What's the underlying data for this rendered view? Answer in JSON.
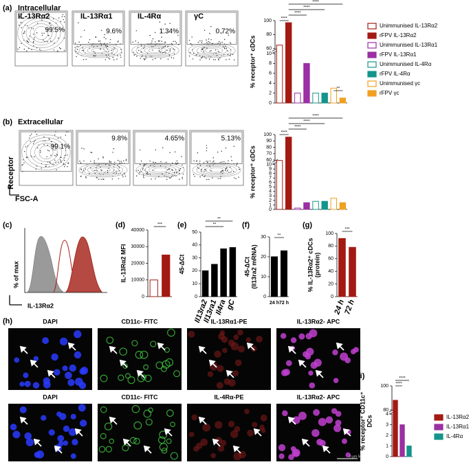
{
  "panel_labels": [
    "(a)",
    "(b)",
    "(c)",
    "(d)",
    "(e)",
    "(f)",
    "(g)",
    "(h)",
    "(i)"
  ],
  "flow_a": {
    "heading": "Intracellular",
    "plots": [
      {
        "title": "IL-13Rα2",
        "percent": "99.5%"
      },
      {
        "title": "IL-13Rα1",
        "percent": "9.6%"
      },
      {
        "title": "IL-4Rα",
        "percent": "1.34%"
      },
      {
        "title": "γC",
        "percent": "0.72%"
      }
    ]
  },
  "flow_b": {
    "heading": "Extracellular",
    "percents": [
      "99.1%",
      "9.8%",
      "4.65%",
      "5.13%"
    ],
    "y_label": "Receptor",
    "x_label": "FSC-A"
  },
  "histogram": {
    "y_label": "% of max",
    "x_label": "IL-13Rα2"
  },
  "microscopy": {
    "rows": [
      [
        "DAPI",
        "CD11c- FITC",
        "IL-13Rα1-PE",
        "IL-13Rα2- APC"
      ],
      [
        "DAPI",
        "CD11c- FITC",
        "IL-4Rα-PE",
        "IL-13Rα2- APC"
      ]
    ],
    "scale_bar": "0 µm 50"
  },
  "chart_data": [
    {
      "type": "bar",
      "y_label": [
        "% receptor⁺ cDCs"
      ],
      "ylim": [
        0,
        100
      ],
      "ybreak": [
        10,
        60
      ],
      "yticks": [
        0,
        2,
        4,
        6,
        8,
        10,
        60,
        80,
        100
      ],
      "legend": "right",
      "series": [
        {
          "name": "Unimmunised IL-13Rα2",
          "color": "#a31a12",
          "hollow": true,
          "values": [
            65
          ]
        },
        {
          "name": "rFPV IL-13Rα2",
          "color": "#a31a12",
          "values": [
            97
          ]
        },
        {
          "name": "Unimmunised IL-13Rα1",
          "color": "#9b2fa3",
          "hollow": true,
          "values": [
            2
          ]
        },
        {
          "name": "rFPV IL-13Rα1",
          "color": "#9b2fa3",
          "values": [
            8
          ]
        },
        {
          "name": "Unimmunised IL-4Rα",
          "color": "#14948a",
          "hollow": true,
          "values": [
            2
          ]
        },
        {
          "name": "rFPV IL-4Rα",
          "color": "#14948a",
          "values": [
            2
          ]
        },
        {
          "name": "Unimmunised γc",
          "color": "#f0a020",
          "hollow": true,
          "values": [
            3
          ]
        },
        {
          "name": "rFPV γc",
          "color": "#f0a020",
          "values": [
            1
          ]
        }
      ],
      "annotations": [
        "****",
        "****",
        "****",
        "****",
        "**"
      ]
    },
    {
      "type": "bar",
      "y_label": [
        "% receptor⁺ cDCs"
      ],
      "ylim": [
        0,
        100
      ],
      "ybreak": [
        10,
        60
      ],
      "yticks": [
        0,
        1,
        2,
        3,
        4,
        5,
        6,
        7,
        8,
        9,
        10,
        60,
        70,
        80,
        90,
        100
      ],
      "values": [
        55,
        96,
        0.3,
        1.5,
        1.8,
        1.8,
        2.5,
        1.5
      ],
      "colors": [
        "#a31a12",
        "#a31a12",
        "#9b2fa3",
        "#9b2fa3",
        "#14948a",
        "#14948a",
        "#f0a020",
        "#f0a020"
      ],
      "hollow": [
        true,
        false,
        true,
        false,
        true,
        false,
        true,
        false
      ],
      "annotations": [
        "****",
        "****",
        "****",
        "****"
      ]
    },
    {
      "type": "bar",
      "y_label": [
        "IL-13Rα2 MFI"
      ],
      "ylim": [
        0,
        40000
      ],
      "yticks": [
        0,
        10000,
        20000,
        30000,
        40000
      ],
      "values": [
        10000,
        25000
      ],
      "colors": [
        "#a31a12",
        "#a31a12"
      ],
      "hollow": [
        true,
        false
      ],
      "annotations": [
        "***"
      ]
    },
    {
      "type": "bar",
      "y_label": [
        "45-ΔCt"
      ],
      "ylim": [
        0,
        50
      ],
      "yticks": [
        0,
        10,
        20,
        30,
        40,
        50
      ],
      "categories": [
        "Il13ra2",
        "Il13ra1",
        "Il4ra",
        "gC"
      ],
      "values": [
        20,
        25,
        37,
        38
      ],
      "color": "#000000",
      "annotations": [
        "**",
        "**"
      ]
    },
    {
      "type": "bar",
      "y_label": [
        "45-ΔCt",
        "(Il13ra2 mRNA)"
      ],
      "ylim": [
        0,
        30
      ],
      "yticks": [
        0,
        10,
        20,
        30
      ],
      "categories": [
        "24 h",
        "72 h"
      ],
      "values": [
        20,
        23
      ],
      "color": "#000000",
      "annotations": [
        "**"
      ]
    },
    {
      "type": "bar",
      "y_label": [
        "% IL-13Rα2⁺ cDCs",
        "(protein)"
      ],
      "ylim": [
        0,
        100
      ],
      "yticks": [
        0,
        20,
        40,
        60,
        80,
        100
      ],
      "categories": [
        "24 h",
        "72 h"
      ],
      "values": [
        92,
        78
      ],
      "color": "#a31a12",
      "annotations": [
        "***"
      ]
    },
    {
      "type": "bar",
      "y_label": [
        "% receptor⁺ CD11c⁺",
        "DCs"
      ],
      "ylim": [
        0,
        100
      ],
      "ybreak": [
        4,
        80
      ],
      "yticks": [
        0,
        1,
        2,
        3,
        4,
        80,
        100
      ],
      "legend": "right",
      "series": [
        {
          "name": "IL-13Rα2",
          "color": "#a31a12",
          "values": [
            88
          ]
        },
        {
          "name": "IL-13Rα1",
          "color": "#9b2fa3",
          "values": [
            3
          ]
        },
        {
          "name": "IL-4Rα",
          "color": "#14948a",
          "values": [
            1
          ]
        }
      ],
      "annotations": [
        "****",
        "****"
      ]
    }
  ]
}
